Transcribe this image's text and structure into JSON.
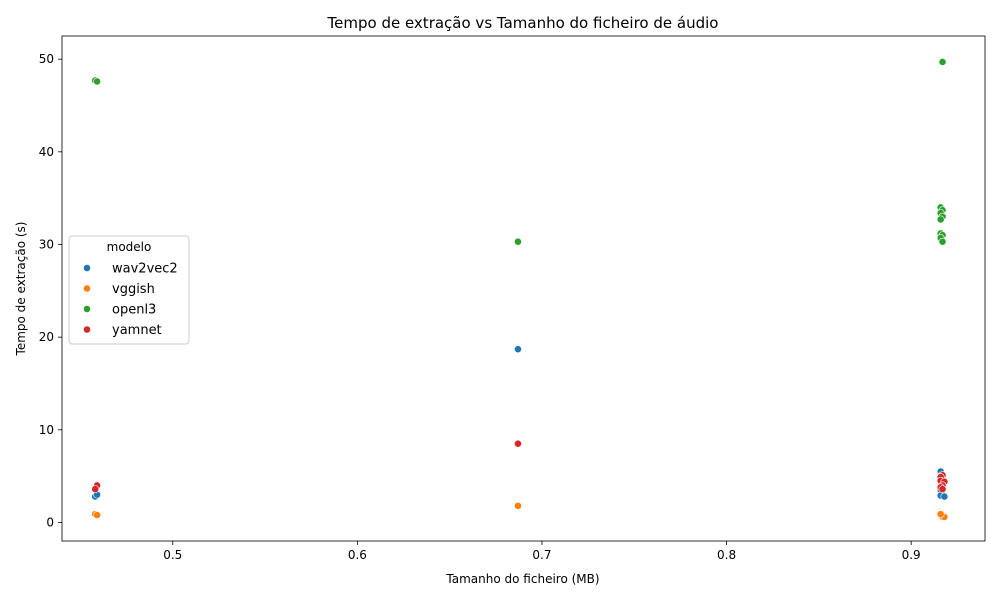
{
  "chart_data": {
    "type": "scatter",
    "title": "Tempo de extração vs Tamanho do ficheiro de áudio",
    "xlabel": "Tamanho do ficheiro (MB)",
    "ylabel": "Tempo de extração (s)",
    "xlim": [
      0.44,
      0.94
    ],
    "ylim": [
      -2,
      52.5
    ],
    "xticks": [
      0.5,
      0.6,
      0.7,
      0.8,
      0.9
    ],
    "yticks": [
      0,
      10,
      20,
      30,
      40,
      50
    ],
    "grid": false,
    "legend": {
      "title": "modelo",
      "placement": "center-left"
    },
    "series": [
      {
        "name": "wav2vec2",
        "color": "#1f77b4",
        "points": [
          [
            0.458,
            2.8
          ],
          [
            0.459,
            3.0
          ],
          [
            0.687,
            18.7
          ],
          [
            0.916,
            5.5
          ],
          [
            0.916,
            5.0
          ],
          [
            0.917,
            4.5
          ],
          [
            0.916,
            3.5
          ],
          [
            0.917,
            3.0
          ],
          [
            0.916,
            2.9
          ],
          [
            0.918,
            2.8
          ],
          [
            0.917,
            3.8
          ]
        ]
      },
      {
        "name": "vggish",
        "color": "#ff7f0e",
        "points": [
          [
            0.458,
            0.9
          ],
          [
            0.459,
            0.8
          ],
          [
            0.687,
            1.8
          ],
          [
            0.916,
            0.8
          ],
          [
            0.917,
            0.7
          ],
          [
            0.917,
            0.6
          ],
          [
            0.918,
            0.6
          ],
          [
            0.916,
            0.9
          ]
        ]
      },
      {
        "name": "openl3",
        "color": "#2ca02c",
        "points": [
          [
            0.458,
            47.7
          ],
          [
            0.459,
            47.6
          ],
          [
            0.687,
            30.3
          ],
          [
            0.917,
            49.7
          ],
          [
            0.916,
            34.0
          ],
          [
            0.917,
            33.7
          ],
          [
            0.916,
            33.4
          ],
          [
            0.917,
            33.0
          ],
          [
            0.916,
            32.7
          ],
          [
            0.916,
            31.2
          ],
          [
            0.917,
            31.0
          ],
          [
            0.916,
            30.7
          ],
          [
            0.917,
            30.3
          ]
        ]
      },
      {
        "name": "yamnet",
        "color": "#d62728",
        "points": [
          [
            0.459,
            4.0
          ],
          [
            0.458,
            3.6
          ],
          [
            0.687,
            8.5
          ],
          [
            0.917,
            5.1
          ],
          [
            0.916,
            4.9
          ],
          [
            0.916,
            4.5
          ],
          [
            0.918,
            4.4
          ],
          [
            0.917,
            4.0
          ],
          [
            0.916,
            3.8
          ],
          [
            0.917,
            3.6
          ]
        ]
      }
    ]
  }
}
